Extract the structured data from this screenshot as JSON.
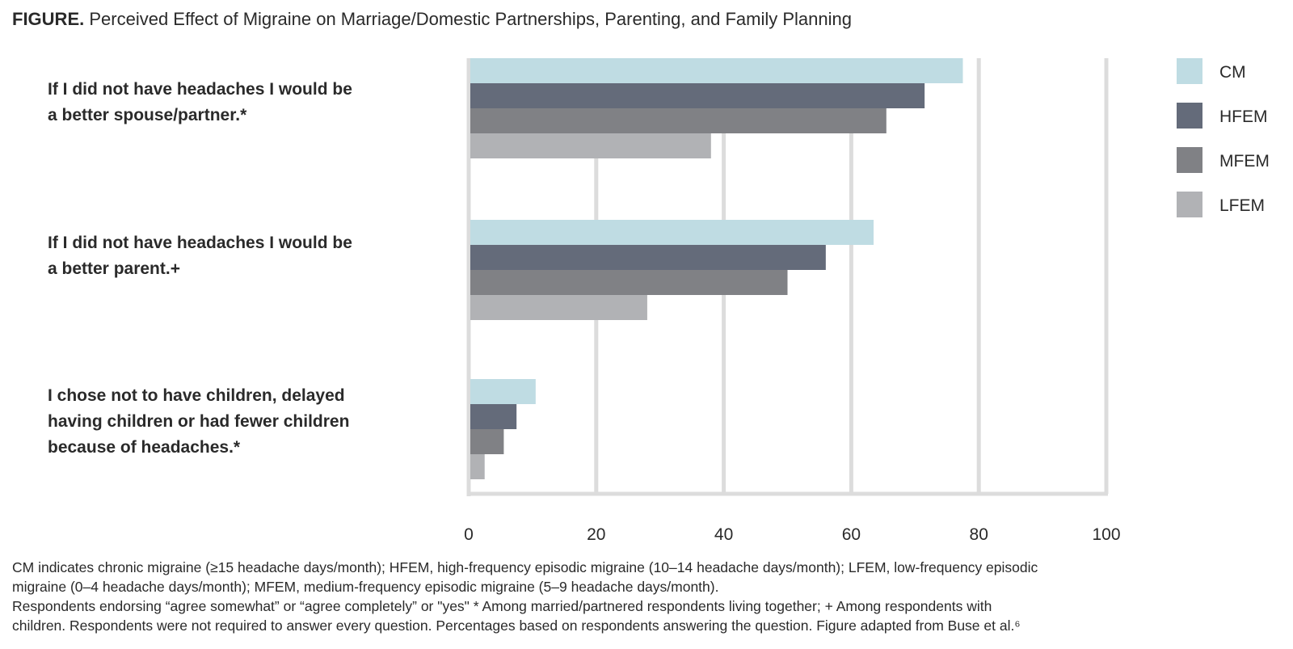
{
  "figure": {
    "prefix": "FIGURE.",
    "title": "Perceived Effect of Migraine on Marriage/Domestic Partnerships, Parenting, and Family Planning"
  },
  "chart_data": {
    "type": "bar",
    "orientation": "horizontal",
    "categories": [
      "If I did not have headaches I would be a better spouse/partner.*",
      "If I did not have headaches I would be a better parent.+",
      "I chose not to have children, delayed having children or had fewer children because of headaches.*"
    ],
    "category_lines": [
      [
        "If I did not have headaches I would be",
        "a better spouse/partner.*"
      ],
      [
        "If I did not have headaches I would be",
        "a better parent.+"
      ],
      [
        "I chose not to have children, delayed",
        "having children or had fewer children",
        "because of headaches.*"
      ]
    ],
    "series": [
      {
        "name": "CM",
        "color": "#bfdce3",
        "values": [
          77.5,
          63.5,
          10.5
        ]
      },
      {
        "name": "HFEM",
        "color": "#646b7a",
        "values": [
          71.5,
          56,
          7.5
        ]
      },
      {
        "name": "MFEM",
        "color": "#808185",
        "values": [
          65.5,
          50,
          5.5
        ]
      },
      {
        "name": "LFEM",
        "color": "#b1b2b5",
        "values": [
          38,
          28,
          2.5
        ]
      }
    ],
    "xlim": [
      0,
      100
    ],
    "xticks": [
      "0",
      "20",
      "40",
      "60",
      "80",
      "100"
    ],
    "xlabel": "",
    "ylabel": "",
    "grid": true,
    "legend_position": "right"
  },
  "footnotes": [
    "CM indicates chronic migraine (≥15 headache days/month); HFEM, high-frequency episodic migraine (10–14 headache days/month); LFEM, low-frequency episodic",
    "migraine (0–4 headache days/month); MFEM, medium-frequency episodic migraine (5–9 headache days/month).",
    "Respondents endorsing “agree somewhat” or “agree completely” or \"yes\"  * Among married/partnered respondents living together;   + Among respondents with",
    "children. Respondents were not required to answer every question. Percentages based on respondents answering the question. Figure adapted from Buse et al.⁶"
  ],
  "colors": {
    "grid": "#dcdcdc",
    "text": "#2a2a2a"
  }
}
